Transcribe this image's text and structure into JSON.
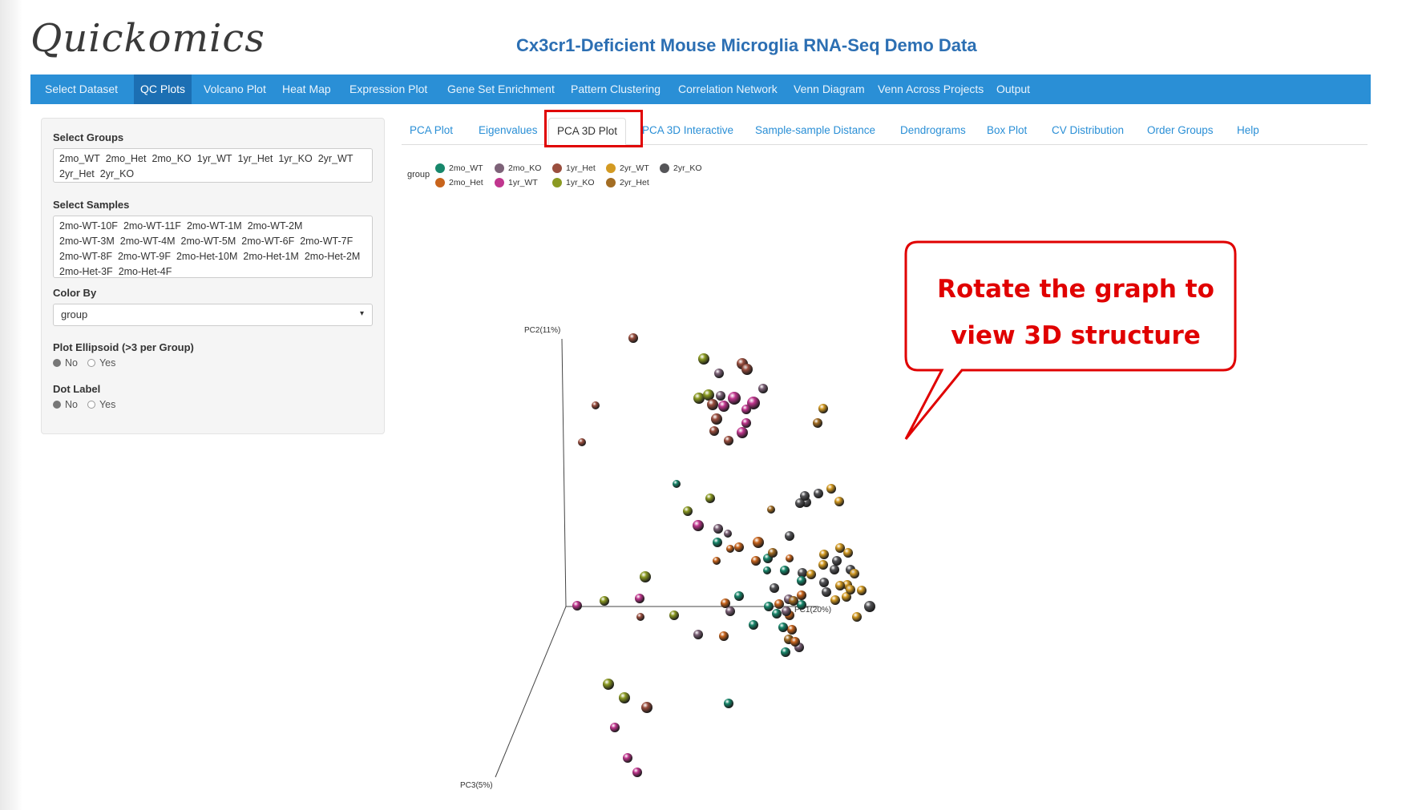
{
  "app": {
    "logo": "Quickomics",
    "title": "Cx3cr1-Deficient Mouse Microglia RNA-Seq Demo Data"
  },
  "nav": {
    "items": [
      "Select Dataset",
      "QC Plots",
      "Volcano Plot",
      "Heat Map",
      "Expression Plot",
      "Gene Set Enrichment",
      "Pattern Clustering",
      "Correlation Network",
      "Venn Diagram",
      "Venn Across Projects",
      "Output"
    ],
    "active": "QC Plots"
  },
  "sidebar": {
    "select_groups_label": "Select Groups",
    "groups": [
      "2mo_WT",
      "2mo_Het",
      "2mo_KO",
      "1yr_WT",
      "1yr_Het",
      "1yr_KO",
      "2yr_WT",
      "2yr_Het",
      "2yr_KO"
    ],
    "select_samples_label": "Select Samples",
    "samples": [
      "2mo-WT-10F",
      "2mo-WT-11F",
      "2mo-WT-1M",
      "2mo-WT-2M",
      "2mo-WT-3M",
      "2mo-WT-4M",
      "2mo-WT-5M",
      "2mo-WT-6F",
      "2mo-WT-7F",
      "2mo-WT-8F",
      "2mo-WT-9F",
      "2mo-Het-10M",
      "2mo-Het-1M",
      "2mo-Het-2M",
      "2mo-Het-3F",
      "2mo-Het-4F"
    ],
    "color_by_label": "Color By",
    "color_by_value": "group",
    "ellipsoid_label": "Plot Ellipsoid (>3 per Group)",
    "ellipsoid_options": [
      "No",
      "Yes"
    ],
    "ellipsoid_selected": "No",
    "dot_label_label": "Dot Label",
    "dot_label_options": [
      "No",
      "Yes"
    ],
    "dot_label_selected": "No"
  },
  "tabs": {
    "items": [
      "PCA Plot",
      "Eigenvalues",
      "PCA 3D Plot",
      "PCA 3D Interactive",
      "Sample-sample Distance",
      "Dendrograms",
      "Box Plot",
      "CV Distribution",
      "Order Groups",
      "Help"
    ],
    "active": "PCA 3D Plot"
  },
  "legend": {
    "title": "group",
    "entries": [
      {
        "name": "2mo_WT",
        "color": "#17876b"
      },
      {
        "name": "2mo_KO",
        "color": "#7d6278"
      },
      {
        "name": "1yr_Het",
        "color": "#9a4e3e"
      },
      {
        "name": "2yr_WT",
        "color": "#d39a22"
      },
      {
        "name": "2yr_KO",
        "color": "#555558"
      },
      {
        "name": "2mo_Het",
        "color": "#c8641c"
      },
      {
        "name": "1yr_WT",
        "color": "#c0368e"
      },
      {
        "name": "1yr_KO",
        "color": "#8b9a22"
      },
      {
        "name": "2yr_Het",
        "color": "#a36d23"
      }
    ]
  },
  "plot3d": {
    "axis_labels": {
      "pc1": "PC1(20%)",
      "pc2": "PC2(11%)",
      "pc3": "PC3(5%)"
    }
  },
  "callout": {
    "line1": "Rotate the graph to",
    "line2": "view 3D structure"
  }
}
